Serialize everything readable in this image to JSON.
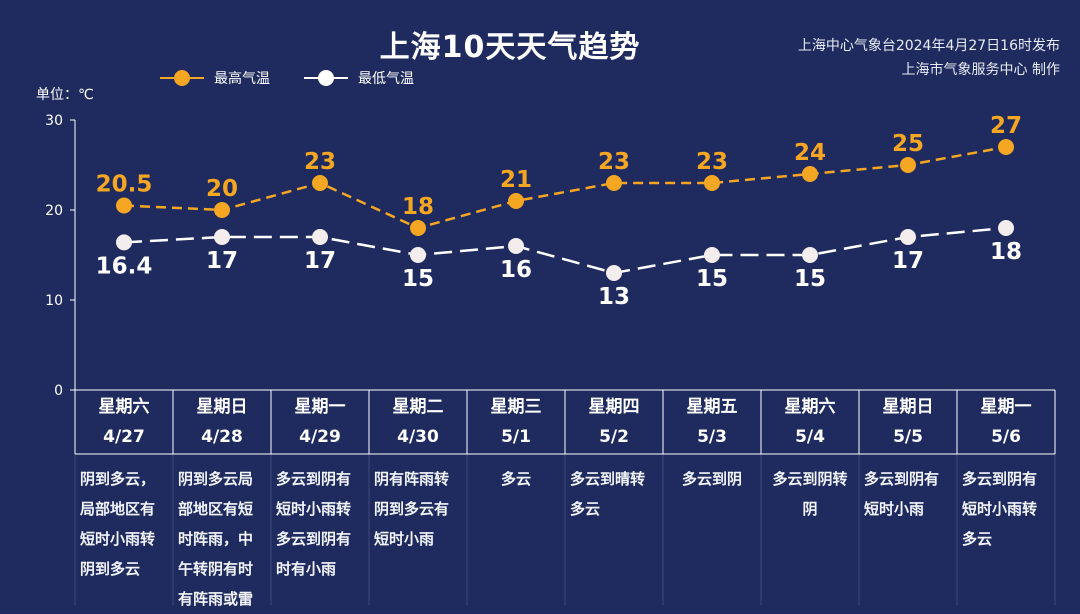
{
  "title": "上海10天天气趋势",
  "issuer": {
    "line1": "上海中心气象台2024年4月27日16时发布",
    "line2": "上海市气象服务中心 制作"
  },
  "legend": {
    "high_label": "最高气温",
    "low_label": "最低气温"
  },
  "unit_label": "单位：℃",
  "colors": {
    "background": "#1f2b5e",
    "high": "#f5a623",
    "low": "#ffffff"
  },
  "days": [
    {
      "weekday": "星期六",
      "date": "4/27",
      "desc": "阴到多云，局部地区有短时小雨转阴到多云"
    },
    {
      "weekday": "星期日",
      "date": "4/28",
      "desc": "阴到多云局部地区有短时阵雨，中午转阴有时有阵雨或雷"
    },
    {
      "weekday": "星期一",
      "date": "4/29",
      "desc": "多云到阴有短时小雨转多云到阴有时有小雨"
    },
    {
      "weekday": "星期二",
      "date": "4/30",
      "desc": "阴有阵雨转阴到多云有短时小雨"
    },
    {
      "weekday": "星期三",
      "date": "5/1",
      "desc": "多云"
    },
    {
      "weekday": "星期四",
      "date": "5/2",
      "desc": "多云到晴转多云"
    },
    {
      "weekday": "星期五",
      "date": "5/3",
      "desc": "多云到阴"
    },
    {
      "weekday": "星期六",
      "date": "5/4",
      "desc": "多云到阴转阴"
    },
    {
      "weekday": "星期日",
      "date": "5/5",
      "desc": "多云到阴有短时小雨"
    },
    {
      "weekday": "星期一",
      "date": "5/6",
      "desc": "多云到阴有短时小雨转多云"
    }
  ],
  "chart_data": {
    "type": "line",
    "categories": [
      "4/27",
      "4/28",
      "4/29",
      "4/30",
      "5/1",
      "5/2",
      "5/3",
      "5/4",
      "5/5",
      "5/6"
    ],
    "series": [
      {
        "name": "最高气温",
        "values": [
          20.5,
          20,
          23,
          18,
          21,
          23,
          23,
          24,
          25,
          27
        ],
        "color": "#f5a623"
      },
      {
        "name": "最低气温",
        "values": [
          16.4,
          17,
          17,
          15,
          16,
          13,
          15,
          15,
          17,
          18
        ],
        "color": "#ffffff"
      }
    ],
    "ylim": [
      0,
      30
    ],
    "yticks": [
      0,
      10,
      20,
      30
    ],
    "ylabel": "单位：℃",
    "legend_position": "top-left",
    "grid": false,
    "line_style": "dashed"
  }
}
